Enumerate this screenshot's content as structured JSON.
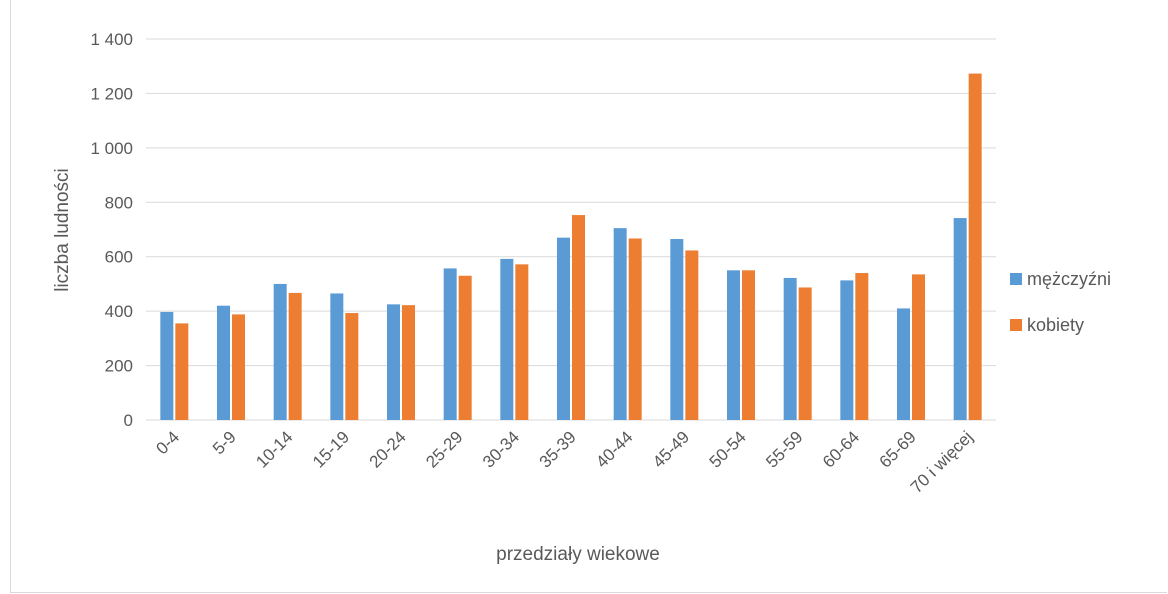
{
  "caption": "",
  "chart_data": {
    "type": "bar",
    "title": "",
    "xlabel": "przedziały wiekowe",
    "ylabel": "liczba ludności",
    "categories": [
      "0-4",
      "5-9",
      "10-14",
      "15-19",
      "20-24",
      "25-29",
      "30-34",
      "35-39",
      "40-44",
      "45-49",
      "50-54",
      "55-59",
      "60-64",
      "65-69",
      "70 i więcej"
    ],
    "series": [
      {
        "name": "mężczyźni",
        "color": "#5b9bd5",
        "values": [
          397,
          420,
          500,
          465,
          425,
          557,
          592,
          670,
          705,
          665,
          550,
          522,
          513,
          410,
          742
        ]
      },
      {
        "name": "kobiety",
        "color": "#ed7d31",
        "values": [
          355,
          388,
          467,
          393,
          422,
          530,
          572,
          753,
          667,
          623,
          550,
          487,
          540,
          535,
          1273
        ]
      }
    ],
    "ylim": [
      0,
      1400
    ],
    "yticks": [
      0,
      200,
      400,
      600,
      800,
      1000,
      1200,
      1400
    ],
    "ytick_labels": [
      "0",
      "200",
      "400",
      "600",
      "800",
      "1 000",
      "1 200",
      "1 400"
    ],
    "grid": true,
    "legend_position": "right"
  }
}
